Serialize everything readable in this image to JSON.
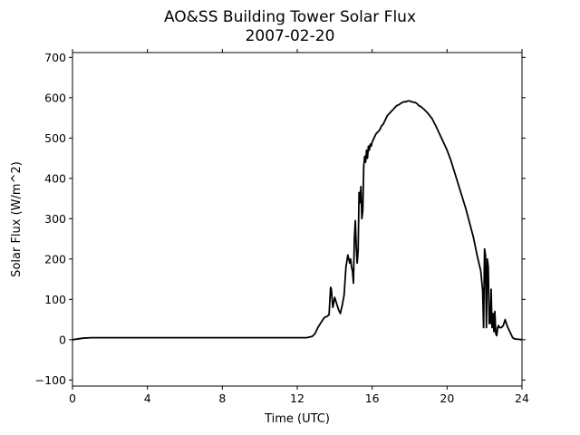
{
  "chart_data": {
    "type": "line",
    "title": "AO&SS Building Tower Solar Flux",
    "subtitle": "2007-02-20",
    "xlabel": "Time (UTC)",
    "ylabel": "Solar Flux (W/m^2)",
    "xlim": [
      0,
      24
    ],
    "ylim": [
      -115,
      712
    ],
    "xticks": [
      0,
      4,
      8,
      12,
      16,
      20,
      24
    ],
    "yticks": [
      -100,
      0,
      100,
      200,
      300,
      400,
      500,
      600,
      700
    ],
    "grid": false,
    "legend": "none",
    "line_color": "#000000",
    "series": [
      {
        "x": [
          0,
          0.3,
          0.6,
          1.0,
          2,
          4,
          6,
          8,
          10,
          12,
          12.5,
          12.8,
          12.95,
          13.1,
          13.3,
          13.45,
          13.6,
          13.7,
          13.78,
          13.82,
          13.9,
          14.0,
          14.1,
          14.2,
          14.3,
          14.4,
          14.5,
          14.6,
          14.7,
          14.8,
          14.85,
          14.9,
          14.95,
          15.0,
          15.05,
          15.1,
          15.15,
          15.2,
          15.25,
          15.3,
          15.35,
          15.4,
          15.45,
          15.5,
          15.55,
          15.6,
          15.65,
          15.7,
          15.75,
          15.8,
          15.85,
          15.9,
          15.95,
          16.0,
          16.1,
          16.2,
          16.3,
          16.4,
          16.5,
          16.6,
          16.7,
          16.8,
          16.9,
          17.0,
          17.1,
          17.2,
          17.3,
          17.4,
          17.5,
          17.6,
          17.7,
          17.8,
          17.9,
          18.0,
          18.1,
          18.2,
          18.3,
          18.4,
          18.5,
          18.6,
          18.8,
          19.0,
          19.2,
          19.4,
          19.6,
          19.8,
          20.0,
          20.2,
          20.4,
          20.6,
          20.8,
          21.0,
          21.2,
          21.4,
          21.6,
          21.8,
          21.9,
          21.95,
          22.0,
          22.05,
          22.1,
          22.15,
          22.2,
          22.25,
          22.3,
          22.35,
          22.4,
          22.45,
          22.5,
          22.55,
          22.6,
          22.65,
          22.7,
          22.75,
          22.8,
          22.9,
          23.0,
          23.1,
          23.2,
          23.3,
          23.4,
          23.5,
          23.6,
          23.8,
          24.0
        ],
        "y": [
          0,
          2,
          4,
          5,
          5,
          5,
          5,
          5,
          5,
          5,
          5,
          8,
          15,
          30,
          45,
          55,
          58,
          62,
          130,
          125,
          80,
          105,
          90,
          75,
          65,
          85,
          110,
          180,
          210,
          190,
          200,
          180,
          170,
          140,
          250,
          295,
          230,
          190,
          220,
          365,
          340,
          380,
          300,
          320,
          430,
          455,
          440,
          470,
          450,
          480,
          470,
          485,
          480,
          490,
          500,
          510,
          515,
          520,
          530,
          535,
          545,
          555,
          560,
          565,
          570,
          575,
          580,
          582,
          585,
          588,
          590,
          590,
          592,
          592,
          590,
          589,
          588,
          585,
          580,
          578,
          570,
          560,
          548,
          530,
          510,
          490,
          470,
          445,
          415,
          385,
          355,
          325,
          290,
          255,
          210,
          170,
          120,
          30,
          225,
          210,
          30,
          200,
          180,
          40,
          40,
          125,
          30,
          65,
          20,
          70,
          15,
          10,
          30,
          35,
          30,
          30,
          35,
          50,
          35,
          25,
          15,
          5,
          2,
          1,
          0
        ]
      }
    ]
  }
}
